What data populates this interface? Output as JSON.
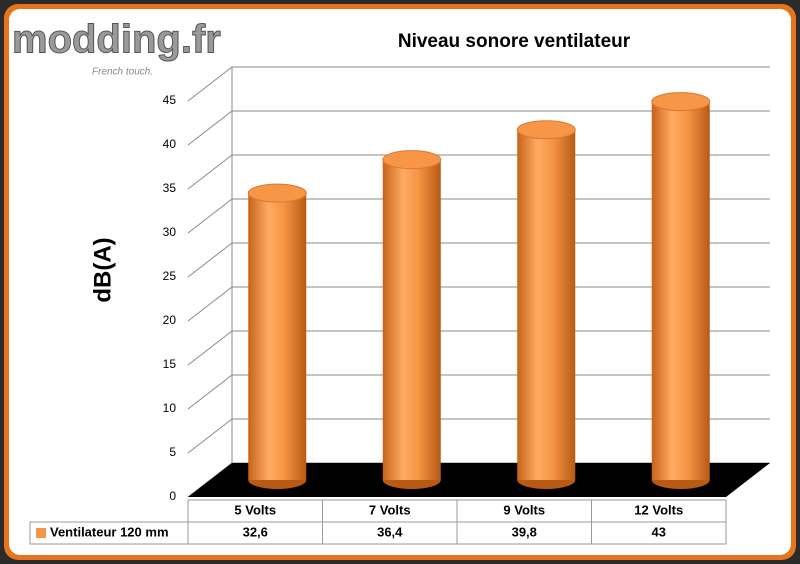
{
  "chart_data": {
    "type": "bar",
    "title": "Niveau sonore ventilateur",
    "y_label": "dB(A)",
    "watermark": "modding.fr",
    "watermark_tagline": "French touch.",
    "categories": [
      "5 Volts",
      "7 Volts",
      "9 Volts",
      "12 Volts"
    ],
    "series": [
      {
        "name": "Ventilateur 120 mm",
        "color": "#f79646",
        "values": [
          32.6,
          36.4,
          39.8,
          43
        ],
        "value_labels": [
          "32,6",
          "36,4",
          "39,8",
          "43"
        ]
      }
    ],
    "ylim": [
      0,
      45
    ],
    "yticks": [
      0,
      5,
      10,
      15,
      20,
      25,
      30,
      35,
      40,
      45
    ],
    "grid": true
  }
}
